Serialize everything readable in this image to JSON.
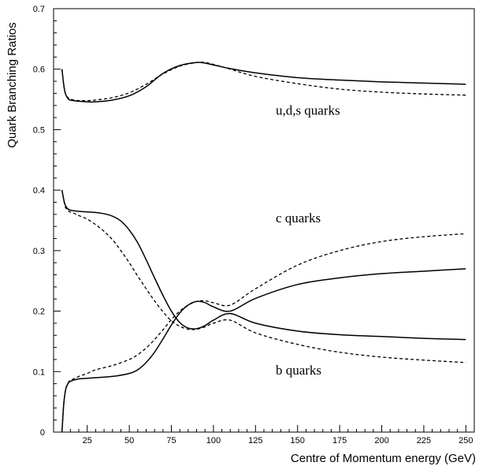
{
  "chart_data": {
    "type": "line",
    "title": "",
    "xlabel": "Centre of Momentum energy (GeV)",
    "ylabel": "Quark Branching Ratios",
    "xlim": [
      5,
      255
    ],
    "ylim": [
      0,
      0.7
    ],
    "xticks": [
      25,
      50,
      75,
      100,
      125,
      150,
      175,
      200,
      225,
      250
    ],
    "yticks": [
      0,
      0.1,
      0.2,
      0.3,
      0.4,
      0.5,
      0.6,
      0.7
    ],
    "grid": false,
    "legend": "none",
    "series": [
      {
        "style": "solid",
        "x": [
          10,
          11,
          12,
          14,
          17,
          20,
          25,
          30,
          40,
          50,
          60,
          70,
          80,
          90,
          95,
          100,
          110,
          125,
          150,
          175,
          200,
          225,
          250
        ],
        "y": [
          0.6,
          0.575,
          0.56,
          0.55,
          0.548,
          0.547,
          0.546,
          0.546,
          0.549,
          0.556,
          0.571,
          0.593,
          0.606,
          0.611,
          0.61,
          0.607,
          0.601,
          0.594,
          0.586,
          0.582,
          0.579,
          0.577,
          0.575
        ]
      },
      {
        "style": "dashed",
        "x": [
          10,
          11,
          12,
          14,
          17,
          20,
          25,
          30,
          40,
          50,
          60,
          70,
          80,
          90,
          95,
          100,
          110,
          125,
          150,
          175,
          200,
          225,
          250
        ],
        "y": [
          0.6,
          0.575,
          0.56,
          0.552,
          0.549,
          0.548,
          0.548,
          0.549,
          0.553,
          0.561,
          0.575,
          0.592,
          0.605,
          0.611,
          0.611,
          0.608,
          0.6,
          0.588,
          0.576,
          0.567,
          0.562,
          0.559,
          0.557
        ]
      },
      {
        "style": "solid",
        "x": [
          10,
          11,
          12,
          14,
          17,
          20,
          25,
          30,
          35,
          40,
          45,
          50,
          55,
          60,
          65,
          70,
          75,
          80,
          85,
          90,
          95,
          100,
          110,
          125,
          150,
          175,
          200,
          225,
          250
        ],
        "y": [
          0.4,
          0.385,
          0.375,
          0.368,
          0.366,
          0.365,
          0.364,
          0.363,
          0.361,
          0.357,
          0.349,
          0.334,
          0.313,
          0.285,
          0.255,
          0.226,
          0.2,
          0.181,
          0.172,
          0.171,
          0.176,
          0.185,
          0.196,
          0.18,
          0.167,
          0.161,
          0.158,
          0.155,
          0.153
        ]
      },
      {
        "style": "dashed",
        "x": [
          10,
          11,
          12,
          14,
          17,
          20,
          25,
          30,
          35,
          40,
          45,
          50,
          55,
          60,
          65,
          70,
          75,
          80,
          85,
          90,
          95,
          100,
          110,
          125,
          150,
          175,
          200,
          225,
          250
        ],
        "y": [
          0.4,
          0.385,
          0.372,
          0.365,
          0.362,
          0.358,
          0.352,
          0.343,
          0.332,
          0.318,
          0.3,
          0.28,
          0.258,
          0.237,
          0.217,
          0.199,
          0.184,
          0.175,
          0.17,
          0.17,
          0.174,
          0.18,
          0.185,
          0.164,
          0.145,
          0.132,
          0.124,
          0.119,
          0.115
        ]
      },
      {
        "style": "solid",
        "x": [
          10,
          11,
          12,
          13,
          14,
          15,
          17,
          20,
          25,
          30,
          40,
          50,
          55,
          60,
          65,
          70,
          75,
          80,
          85,
          90,
          95,
          100,
          110,
          125,
          150,
          175,
          200,
          225,
          250
        ],
        "y": [
          0.0,
          0.045,
          0.068,
          0.077,
          0.082,
          0.084,
          0.086,
          0.088,
          0.089,
          0.09,
          0.092,
          0.097,
          0.103,
          0.115,
          0.132,
          0.154,
          0.177,
          0.197,
          0.21,
          0.216,
          0.214,
          0.207,
          0.2,
          0.221,
          0.244,
          0.255,
          0.262,
          0.266,
          0.27
        ]
      },
      {
        "style": "dashed",
        "x": [
          10,
          11,
          12,
          13,
          14,
          15,
          17,
          20,
          25,
          30,
          40,
          50,
          55,
          60,
          65,
          70,
          75,
          80,
          85,
          90,
          95,
          100,
          110,
          125,
          150,
          175,
          200,
          225,
          250
        ],
        "y": [
          0.0,
          0.045,
          0.068,
          0.078,
          0.083,
          0.086,
          0.088,
          0.092,
          0.097,
          0.103,
          0.11,
          0.12,
          0.128,
          0.139,
          0.153,
          0.169,
          0.186,
          0.2,
          0.21,
          0.216,
          0.217,
          0.214,
          0.21,
          0.237,
          0.276,
          0.3,
          0.315,
          0.323,
          0.328
        ]
      }
    ],
    "annotations": [
      {
        "text": "u,d,s quarks",
        "x": 137,
        "y": 0.525
      },
      {
        "text": "c quarks",
        "x": 137,
        "y": 0.347
      },
      {
        "text": "b quarks",
        "x": 137,
        "y": 0.095
      }
    ]
  }
}
